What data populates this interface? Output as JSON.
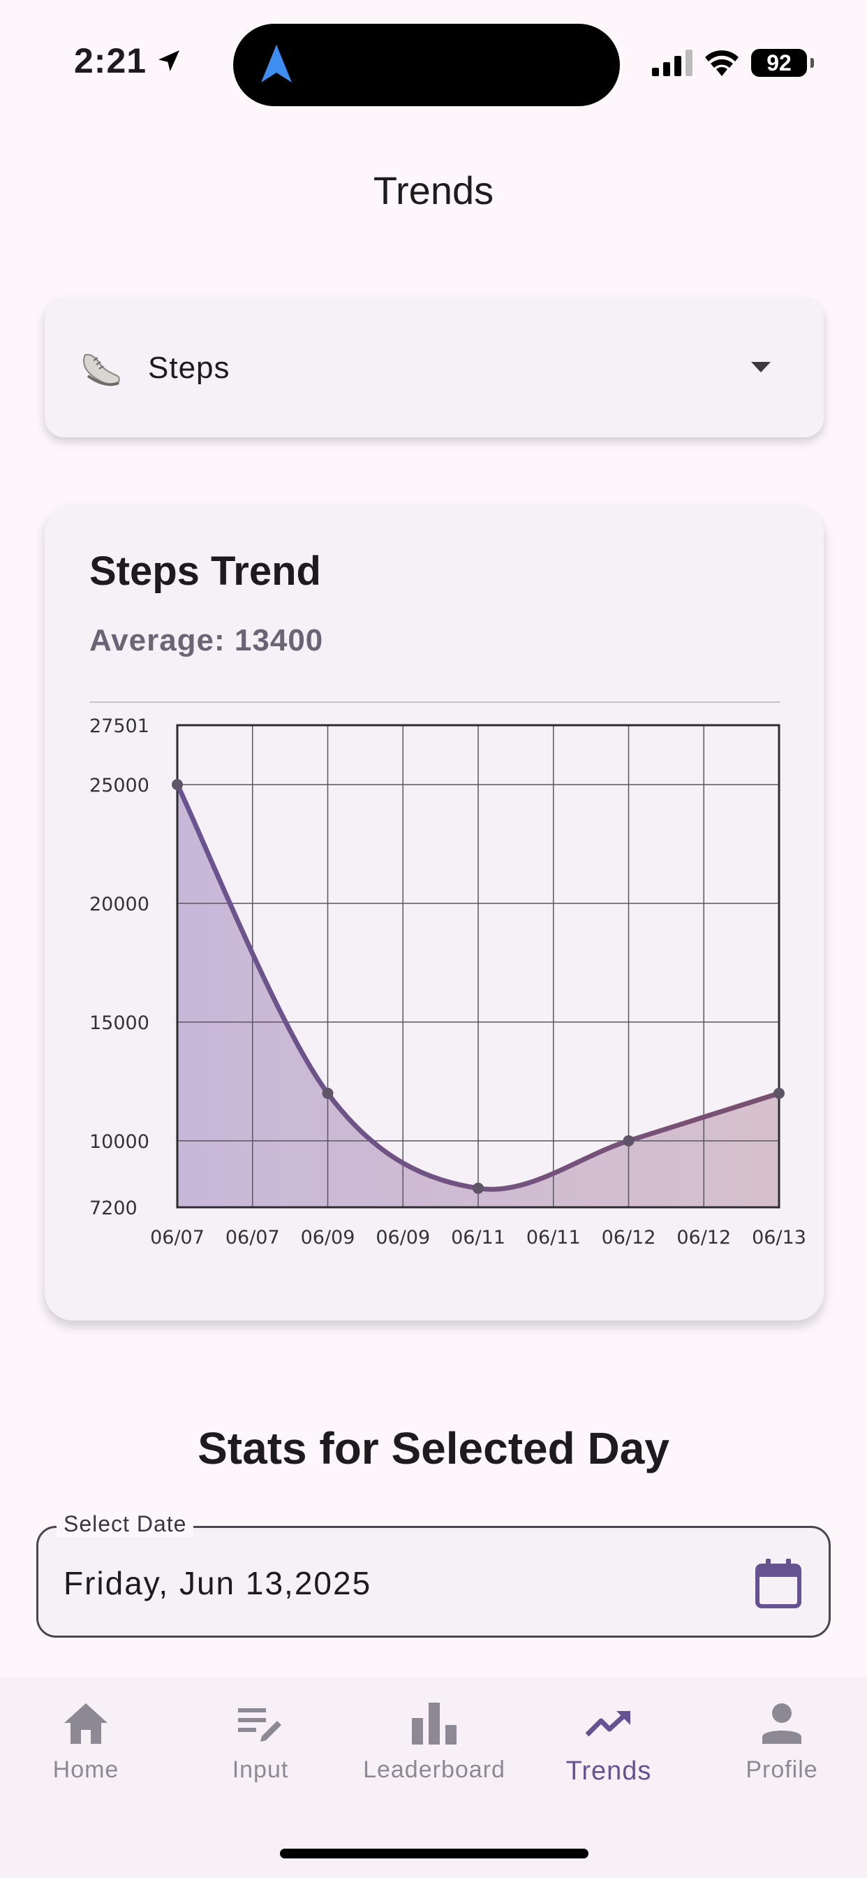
{
  "status_bar": {
    "time": "2:21",
    "battery": "92"
  },
  "page": {
    "title": "Trends"
  },
  "metric_selector": {
    "icon": "shoe-icon",
    "selected": "Steps"
  },
  "chart_card": {
    "title": "Steps Trend",
    "average": "Average: 13400"
  },
  "chart_data": {
    "type": "area",
    "title": "Steps Trend",
    "x_tick_labels": [
      "06/07",
      "06/07",
      "06/09",
      "06/09",
      "06/11",
      "06/11",
      "06/12",
      "06/12",
      "06/13"
    ],
    "y_tick_labels": [
      "27501",
      "25000",
      "20000",
      "15000",
      "10000",
      "7200"
    ],
    "ylim": [
      7200,
      27501
    ],
    "grid": true,
    "points": [
      {
        "x": "06/07",
        "y": 25000
      },
      {
        "x": "06/09",
        "y": 12000
      },
      {
        "x": "06/11",
        "y": 8000
      },
      {
        "x": "06/12",
        "y": 10000
      },
      {
        "x": "06/13",
        "y": 12000
      }
    ],
    "line_color": "#6a5490",
    "fill_color": "#cdbdd6"
  },
  "stats": {
    "heading": "Stats for Selected Day",
    "date_label": "Select Date",
    "date_value": "Friday, Jun 13,2025"
  },
  "bottom_nav": {
    "items": [
      {
        "label": "Home",
        "icon": "home-icon",
        "active": false
      },
      {
        "label": "Input",
        "icon": "edit-note-icon",
        "active": false
      },
      {
        "label": "Leaderboard",
        "icon": "bar-chart-icon",
        "active": false
      },
      {
        "label": "Trends",
        "icon": "trending-up-icon",
        "active": true
      },
      {
        "label": "Profile",
        "icon": "person-icon",
        "active": false
      }
    ],
    "active_color": "#645390"
  }
}
